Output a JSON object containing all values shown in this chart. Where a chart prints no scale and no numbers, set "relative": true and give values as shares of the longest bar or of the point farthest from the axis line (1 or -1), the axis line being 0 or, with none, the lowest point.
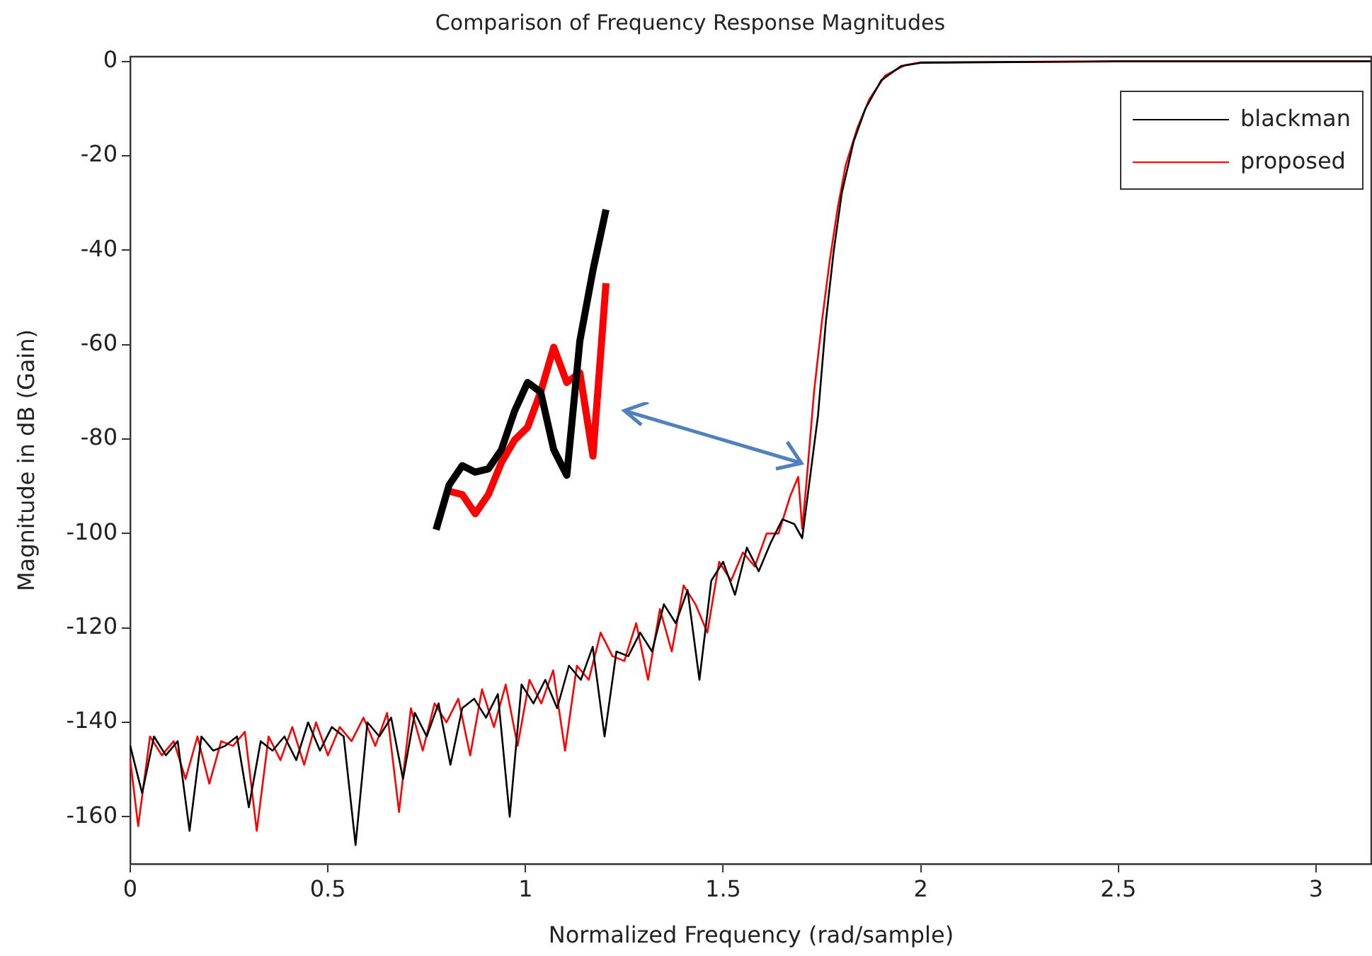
{
  "chart_data": [
    {
      "type": "line",
      "title": "Comparison of Frequency Response Magnitudes",
      "xlabel": "Normalized Frequency (rad/sample)",
      "ylabel": "Magnitude in dB (Gain)",
      "xlim": [
        0,
        3.1416
      ],
      "xticks": [
        0,
        0.5,
        1,
        1.5,
        2,
        2.5,
        3
      ],
      "ylim": [
        -170,
        1
      ],
      "yticks": [
        -160,
        -140,
        -120,
        -100,
        -80,
        -60,
        -40,
        -20,
        0
      ],
      "grid": false,
      "legend": "top right",
      "marker": "none",
      "line_style": "solid",
      "series": [
        {
          "name": "blackman",
          "color": "#000000",
          "x": [
            0,
            0.03,
            0.06,
            0.09,
            0.12,
            0.15,
            0.18,
            0.21,
            0.24,
            0.27,
            0.3,
            0.33,
            0.36,
            0.39,
            0.42,
            0.45,
            0.48,
            0.51,
            0.54,
            0.57,
            0.6,
            0.63,
            0.66,
            0.69,
            0.72,
            0.75,
            0.78,
            0.81,
            0.84,
            0.87,
            0.9,
            0.93,
            0.96,
            0.99,
            1.02,
            1.05,
            1.08,
            1.11,
            1.14,
            1.17,
            1.2,
            1.23,
            1.26,
            1.29,
            1.32,
            1.35,
            1.38,
            1.41,
            1.44,
            1.47,
            1.5,
            1.53,
            1.56,
            1.59,
            1.62,
            1.65,
            1.68,
            1.7,
            1.72,
            1.74,
            1.76,
            1.78,
            1.8,
            1.83,
            1.86,
            1.9,
            1.95,
            2,
            2.5,
            3.1416
          ],
          "values": [
            -145,
            -155,
            -143,
            -147,
            -144,
            -163,
            -143,
            -146,
            -145,
            -143,
            -158,
            -144,
            -146,
            -143,
            -148,
            -140,
            -146,
            -141,
            -143,
            -166,
            -140,
            -143,
            -139,
            -152,
            -138,
            -143,
            -136,
            -149,
            -137,
            -135,
            -139,
            -134,
            -160,
            -132,
            -136,
            -131,
            -137,
            -128,
            -131,
            -124,
            -143,
            -125,
            -126,
            -121,
            -125,
            -115,
            -119,
            -112,
            -131,
            -110,
            -106,
            -113,
            -103,
            -108,
            -102,
            -97,
            -98,
            -101,
            -88,
            -75,
            -55,
            -40,
            -28,
            -17,
            -10,
            -4,
            -1,
            -0.3,
            0,
            0
          ]
        },
        {
          "name": "proposed",
          "color": "#ff0000",
          "x": [
            0,
            0.02,
            0.05,
            0.08,
            0.11,
            0.14,
            0.17,
            0.2,
            0.23,
            0.26,
            0.29,
            0.32,
            0.35,
            0.38,
            0.41,
            0.44,
            0.47,
            0.5,
            0.53,
            0.56,
            0.59,
            0.62,
            0.65,
            0.68,
            0.71,
            0.74,
            0.77,
            0.8,
            0.83,
            0.86,
            0.89,
            0.92,
            0.95,
            0.98,
            1.01,
            1.04,
            1.07,
            1.1,
            1.13,
            1.16,
            1.19,
            1.22,
            1.25,
            1.28,
            1.31,
            1.34,
            1.37,
            1.4,
            1.43,
            1.46,
            1.49,
            1.52,
            1.55,
            1.58,
            1.61,
            1.64,
            1.67,
            1.69,
            1.7,
            1.71,
            1.73,
            1.75,
            1.77,
            1.79,
            1.81,
            1.84,
            1.87,
            1.91,
            1.96,
            2,
            2.5,
            3.1416
          ],
          "values": [
            -148,
            -162,
            -143,
            -147,
            -144,
            -152,
            -143,
            -153,
            -144,
            -145,
            -142,
            -163,
            -143,
            -148,
            -141,
            -149,
            -140,
            -147,
            -141,
            -144,
            -139,
            -145,
            -138,
            -159,
            -137,
            -146,
            -136,
            -140,
            -135,
            -147,
            -133,
            -141,
            -132,
            -145,
            -131,
            -136,
            -129,
            -146,
            -128,
            -131,
            -121,
            -126,
            -127,
            -119,
            -131,
            -116,
            -125,
            -111,
            -115,
            -121,
            -106,
            -110,
            -104,
            -107,
            -100,
            -100,
            -92,
            -88,
            -99,
            -90,
            -70,
            -55,
            -42,
            -31,
            -22,
            -14,
            -8,
            -3,
            -0.8,
            -0.2,
            0,
            0
          ]
        }
      ]
    },
    {
      "type": "line",
      "relative": true,
      "marker": "none",
      "line_style": "solid",
      "categories": [
        null,
        null,
        null,
        null,
        null,
        null,
        null,
        null,
        null,
        null,
        null,
        null,
        null,
        null
      ],
      "series": [
        {
          "color": "#000000",
          "values": [
            0,
            0.14,
            0.2,
            0.18,
            0.19,
            0.25,
            0.37,
            0.46,
            0.43,
            0.25,
            0.17,
            0.59,
            0.81,
            1
          ]
        },
        {
          "color": "#ff0000",
          "values": [
            null,
            0.12,
            0.11,
            0.05,
            0.11,
            0.21,
            0.28,
            0.32,
            0.43,
            0.57,
            0.46,
            0.49,
            0.23,
            0.77
          ]
        }
      ]
    }
  ]
}
